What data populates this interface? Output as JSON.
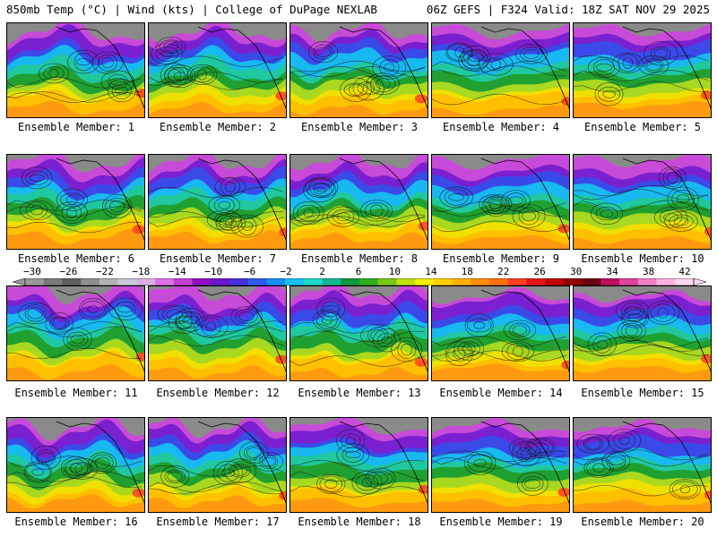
{
  "header": {
    "left": "850mb Temp (°C) | Wind (kts) | College of DuPage NEXLAB",
    "right": "06Z GEFS | F324 Valid: 18Z SAT NOV 29 2025"
  },
  "members": [
    "Ensemble Member: 1",
    "Ensemble Member: 2",
    "Ensemble Member: 3",
    "Ensemble Member: 4",
    "Ensemble Member: 5",
    "Ensemble Member: 6",
    "Ensemble Member: 7",
    "Ensemble Member: 8",
    "Ensemble Member: 9",
    "Ensemble Member: 10",
    "Ensemble Member: 11",
    "Ensemble Member: 12",
    "Ensemble Member: 13",
    "Ensemble Member: 14",
    "Ensemble Member: 15",
    "Ensemble Member: 16",
    "Ensemble Member: 17",
    "Ensemble Member: 18",
    "Ensemble Member: 19",
    "Ensemble Member: 20"
  ],
  "colorbar": {
    "labels": [
      "−30",
      "−26",
      "−22",
      "−18",
      "−14",
      "−10",
      "−6",
      "−2",
      "2",
      "6",
      "10",
      "14",
      "18",
      "22",
      "26",
      "30",
      "34",
      "38",
      "42"
    ],
    "colors": [
      "#9a9a9a",
      "#7a7a7a",
      "#5e5e5e",
      "#8f8f8f",
      "#b3b3b3",
      "#c8c8d8",
      "#dcaee6",
      "#e070e8",
      "#c040d0",
      "#9010c0",
      "#6a18d0",
      "#4830e0",
      "#2a5cf0",
      "#1a8cf5",
      "#18c0f0",
      "#20d8c8",
      "#10b890",
      "#109a40",
      "#30b020",
      "#78c818",
      "#c0e010",
      "#f0f000",
      "#ffd000",
      "#ffb000",
      "#ff9000",
      "#ff7010",
      "#ff4020",
      "#e81818",
      "#c00000",
      "#900000",
      "#6a0010",
      "#c01060",
      "#e040a0",
      "#f080c8",
      "#ffb0e0",
      "#ffd8f0"
    ]
  }
}
